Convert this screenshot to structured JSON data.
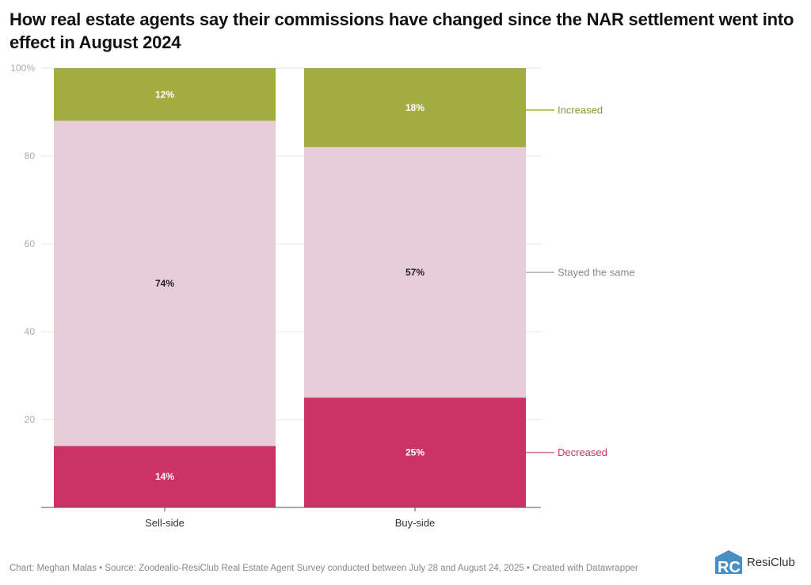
{
  "title": "How real estate agents say their commissions have changed since the NAR settlement went into effect in August 2024",
  "footer": "Chart: Meghan Malas • Source: Zoodealio-ResiClub Real Estate Agent Survey conducted between July 28 and August 24, 2025 • Created with Datawrapper",
  "logo": {
    "text": "ResiClub",
    "mark": "RC",
    "color": "#4a8fc4"
  },
  "chart_data": {
    "type": "bar",
    "stacked": true,
    "title": "How real estate agents say their commissions have changed since the NAR settlement went into effect in August 2024",
    "xlabel": "",
    "ylabel": "",
    "ylim": [
      0,
      100
    ],
    "yticks": [
      0,
      20,
      40,
      60,
      80,
      100
    ],
    "ytick_labels": [
      "",
      "20",
      "40",
      "60",
      "80",
      "100%"
    ],
    "grid": true,
    "categories": [
      "Sell-side",
      "Buy-side"
    ],
    "series": [
      {
        "name": "Decreased",
        "values": [
          14,
          25
        ],
        "labels": [
          "14%",
          "25%"
        ],
        "color": "#cb3366",
        "label_color": "#ffffff"
      },
      {
        "name": "Stayed the same",
        "values": [
          74,
          57
        ],
        "labels": [
          "74%",
          "57%"
        ],
        "color": "#e8cdd9",
        "label_color": "#222222"
      },
      {
        "name": "Increased",
        "values": [
          12,
          18
        ],
        "labels": [
          "12%",
          "18%"
        ],
        "color": "#a3ad40",
        "label_color": "#ffffff"
      }
    ],
    "legend": {
      "placement": "right",
      "entries": [
        {
          "name": "Increased",
          "color": "#8a9a2a",
          "line_color": "#a3ad40"
        },
        {
          "name": "Stayed the same",
          "color": "#888888",
          "line_color": "#b9a9b2"
        },
        {
          "name": "Decreased",
          "color": "#cb3366",
          "line_color": "#e07399"
        }
      ]
    }
  }
}
